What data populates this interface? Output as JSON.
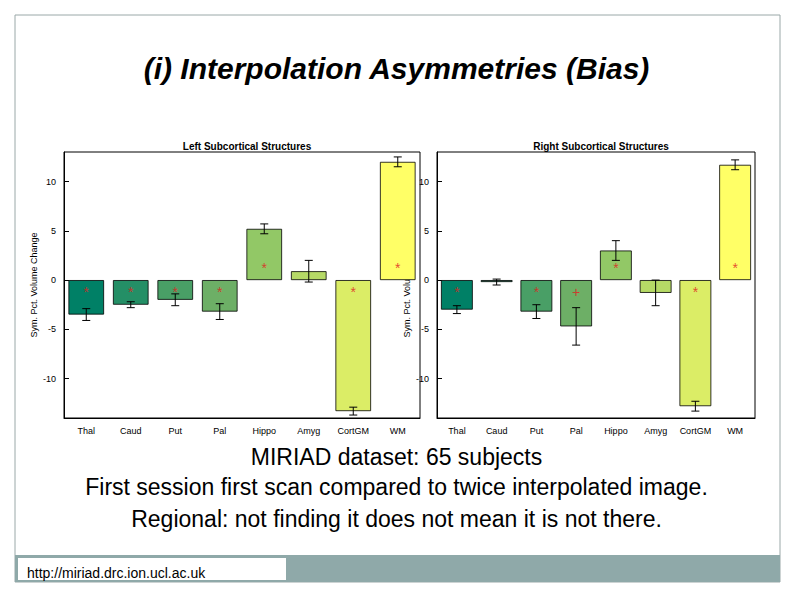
{
  "title": "(i) Interpolation Asymmetries (Bias)",
  "caption": [
    "MIRIAD dataset: 65 subjects",
    "First session first scan compared to twice interpolated image.",
    "Regional: not finding it does not mean it is not there."
  ],
  "url": "http://miriad.drc.ion.ucl.ac.uk",
  "chart_data": [
    {
      "type": "bar",
      "title": "Left Subcortical Structures",
      "y_label": "Sym. Pct. Volume Change",
      "categories": [
        "Thal",
        "Caud",
        "Put",
        "Pal",
        "Hippo",
        "Amyg",
        "CortGM",
        "WM"
      ],
      "values": [
        -3.5,
        -2.5,
        -2.0,
        -3.2,
        5.2,
        0.9,
        -13.3,
        12.0
      ],
      "errors": [
        0.6,
        0.3,
        0.6,
        0.8,
        0.5,
        1.1,
        0.4,
        0.5
      ],
      "marks": [
        "*",
        "*",
        "*",
        "*",
        "*",
        null,
        "*",
        "*"
      ],
      "colors": [
        "#008066",
        "#248f66",
        "#499f66",
        "#6daf66",
        "#92c866",
        "#b6da66",
        "#dbed66",
        "#ffff66"
      ],
      "ylim": [
        -14,
        13
      ],
      "yticks": [
        -10,
        -5,
        0,
        5,
        10
      ],
      "grid": false
    },
    {
      "type": "bar",
      "title": "Right Subcortical Structures",
      "y_label": "Sym. Pct. Volume Change",
      "categories": [
        "Thal",
        "Caud",
        "Put",
        "Pal",
        "Hippo",
        "Amyg",
        "CortGM",
        "WM"
      ],
      "values": [
        -3.0,
        -0.2,
        -3.2,
        -4.7,
        3.0,
        -1.3,
        -12.8,
        11.7
      ],
      "errors": [
        0.4,
        0.3,
        0.7,
        1.9,
        1.0,
        1.3,
        0.5,
        0.5
      ],
      "marks": [
        "*",
        null,
        "*",
        "+",
        "*",
        null,
        "*",
        "*"
      ],
      "colors": [
        "#008066",
        "#248f66",
        "#499f66",
        "#6daf66",
        "#92c866",
        "#b6da66",
        "#dbed66",
        "#ffff66"
      ],
      "ylim": [
        -14,
        13
      ],
      "yticks": [
        -10,
        -5,
        0,
        5,
        10
      ],
      "grid": false
    }
  ]
}
